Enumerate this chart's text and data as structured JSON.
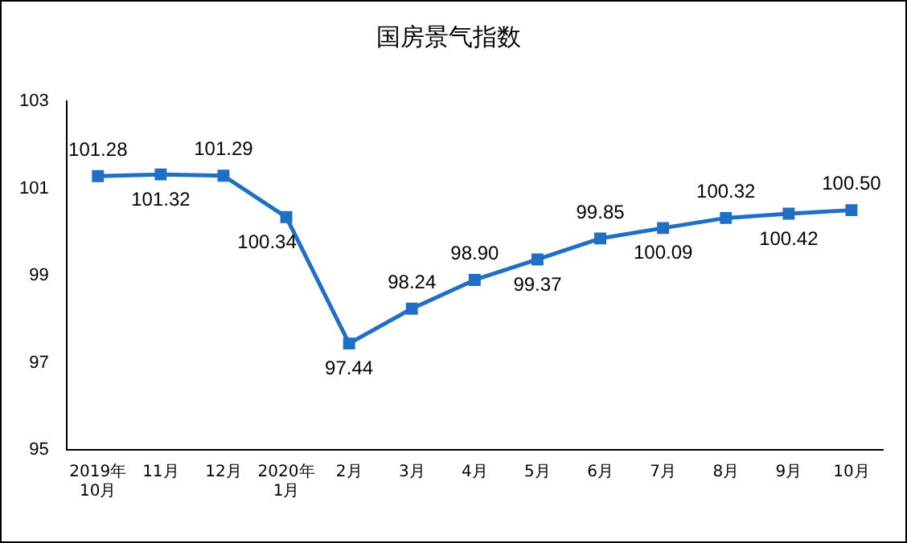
{
  "chart_data": {
    "type": "line",
    "title": "国房景气指数",
    "categories": [
      "2019年\n10月",
      "11月",
      "12月",
      "2020年\n1月",
      "2月",
      "3月",
      "4月",
      "5月",
      "6月",
      "7月",
      "8月",
      "9月",
      "10月"
    ],
    "series": [
      {
        "color": "#1f6fc5",
        "values": [
          101.28,
          101.32,
          101.29,
          100.34,
          97.44,
          98.24,
          98.9,
          99.37,
          99.85,
          100.09,
          100.32,
          100.42,
          100.5
        ],
        "value_labels": [
          "101.28",
          "101.32",
          "101.29",
          "100.34",
          "97.44",
          "98.24",
          "98.90",
          "99.37",
          "99.85",
          "100.09",
          "100.32",
          "100.42",
          "100.50"
        ]
      }
    ],
    "ylim": [
      95,
      103
    ],
    "yticks": [
      95,
      97,
      99,
      101,
      103
    ],
    "grid": false,
    "legend": false,
    "marker": "square",
    "line_style": "solid"
  }
}
